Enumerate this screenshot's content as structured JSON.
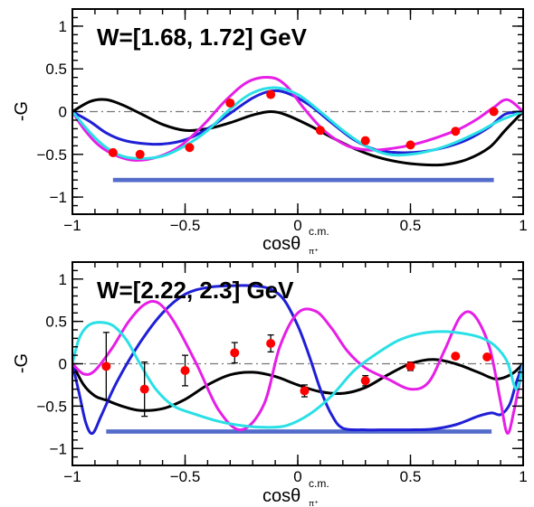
{
  "chart_data": [
    {
      "type": "scatter",
      "title": "W=[1.68, 1.72] GeV",
      "ylabel": "-G",
      "xlabel": "cosθ",
      "xlabel_sup": "c.m.",
      "xlabel_sub": "π⁺",
      "xlim": [
        -1,
        1
      ],
      "ylim": [
        -1.2,
        1.2
      ],
      "xticks": [
        -1,
        -0.5,
        0,
        0.5,
        1
      ],
      "xtick_labels": [
        "−1",
        "−0.5",
        "0",
        "0.5",
        "1"
      ],
      "yticks": [
        -1,
        -0.5,
        0,
        0.5,
        1
      ],
      "ytick_labels": [
        "−1",
        "−0.5",
        "0",
        "0.5",
        "1"
      ],
      "colors": {
        "data": "#ff0000",
        "black": "#000000",
        "blue": "#1f1fd6",
        "magenta": "#e61ee6",
        "cyan": "#29e0e6",
        "systematic": "#1a3bb8"
      },
      "data": {
        "x": [
          -0.82,
          -0.7,
          -0.48,
          -0.3,
          -0.12,
          0.1,
          0.3,
          0.5,
          0.7,
          0.87
        ],
        "y": [
          -0.48,
          -0.5,
          -0.42,
          0.1,
          0.2,
          -0.22,
          -0.34,
          -0.39,
          -0.23,
          0.0
        ],
        "err": [
          0.02,
          0.02,
          0.02,
          0.02,
          0.02,
          0.02,
          0.02,
          0.02,
          0.02,
          0.02
        ]
      },
      "systematic_band": {
        "x": [
          -0.82,
          0.87
        ],
        "y": -0.8,
        "height": 0.05
      },
      "series": [
        {
          "color": "black",
          "x": [
            -1,
            -0.92,
            -0.85,
            -0.78,
            -0.7,
            -0.6,
            -0.5,
            -0.4,
            -0.3,
            -0.2,
            -0.12,
            -0.05,
            0.05,
            0.15,
            0.25,
            0.35,
            0.45,
            0.55,
            0.65,
            0.75,
            0.85,
            0.92,
            1
          ],
          "y": [
            0,
            0.12,
            0.14,
            0.08,
            -0.02,
            -0.15,
            -0.22,
            -0.2,
            -0.13,
            -0.04,
            0.0,
            -0.04,
            -0.16,
            -0.3,
            -0.43,
            -0.53,
            -0.59,
            -0.62,
            -0.62,
            -0.56,
            -0.42,
            -0.22,
            0
          ]
        },
        {
          "color": "blue",
          "x": [
            -1,
            -0.92,
            -0.85,
            -0.78,
            -0.7,
            -0.6,
            -0.5,
            -0.4,
            -0.3,
            -0.2,
            -0.12,
            -0.05,
            0.05,
            0.15,
            0.25,
            0.35,
            0.45,
            0.55,
            0.65,
            0.75,
            0.85,
            0.92,
            1
          ],
          "y": [
            0,
            -0.12,
            -0.25,
            -0.33,
            -0.37,
            -0.38,
            -0.33,
            -0.2,
            -0.02,
            0.16,
            0.24,
            0.22,
            0.08,
            -0.13,
            -0.33,
            -0.45,
            -0.48,
            -0.47,
            -0.42,
            -0.33,
            -0.18,
            -0.03,
            0
          ]
        },
        {
          "color": "magenta",
          "x": [
            -1,
            -0.95,
            -0.88,
            -0.8,
            -0.72,
            -0.62,
            -0.52,
            -0.42,
            -0.32,
            -0.22,
            -0.12,
            -0.05,
            0.03,
            0.12,
            0.22,
            0.32,
            0.42,
            0.52,
            0.62,
            0.72,
            0.8,
            0.87,
            0.93,
            1
          ],
          "y": [
            0,
            -0.2,
            -0.4,
            -0.52,
            -0.57,
            -0.53,
            -0.4,
            -0.16,
            0.13,
            0.35,
            0.4,
            0.3,
            0.03,
            -0.23,
            -0.4,
            -0.45,
            -0.43,
            -0.38,
            -0.3,
            -0.2,
            -0.08,
            0.05,
            0.14,
            0
          ]
        },
        {
          "color": "cyan",
          "x": [
            -1,
            -0.92,
            -0.85,
            -0.78,
            -0.7,
            -0.6,
            -0.5,
            -0.4,
            -0.3,
            -0.2,
            -0.1,
            0.0,
            0.1,
            0.2,
            0.3,
            0.4,
            0.5,
            0.6,
            0.7,
            0.8,
            0.9,
            1
          ],
          "y": [
            0,
            -0.25,
            -0.42,
            -0.52,
            -0.55,
            -0.52,
            -0.4,
            -0.22,
            0.03,
            0.22,
            0.28,
            0.2,
            0.0,
            -0.22,
            -0.4,
            -0.5,
            -0.5,
            -0.45,
            -0.36,
            -0.24,
            -0.1,
            0
          ]
        }
      ]
    },
    {
      "type": "scatter",
      "title": "W=[2.22, 2.3] GeV",
      "ylabel": "-G",
      "xlabel": "cosθ",
      "xlabel_sup": "c.m.",
      "xlabel_sub": "π⁺",
      "xlim": [
        -1,
        1
      ],
      "ylim": [
        -1.2,
        1.2
      ],
      "xticks": [
        -1,
        -0.5,
        0,
        0.5,
        1
      ],
      "xtick_labels": [
        "−1",
        "−0.5",
        "0",
        "0.5",
        "1"
      ],
      "yticks": [
        -1,
        -0.5,
        0,
        0.5,
        1
      ],
      "ytick_labels": [
        "−1",
        "−0.5",
        "0",
        "0.5",
        "1"
      ],
      "colors": {
        "data": "#ff0000",
        "black": "#000000",
        "blue": "#1f1fd6",
        "magenta": "#e61ee6",
        "cyan": "#29e0e6",
        "systematic": "#1a3bb8"
      },
      "data": {
        "x": [
          -0.85,
          -0.68,
          -0.5,
          -0.28,
          -0.12,
          0.03,
          0.3,
          0.5,
          0.7,
          0.84
        ],
        "y": [
          -0.03,
          -0.3,
          -0.08,
          0.13,
          0.24,
          -0.32,
          -0.2,
          -0.03,
          0.09,
          0.08
        ],
        "err": [
          0.4,
          0.32,
          0.18,
          0.12,
          0.1,
          0.07,
          0.06,
          0.05,
          0.03,
          0.03
        ]
      },
      "systematic_band": {
        "x": [
          -0.85,
          0.86
        ],
        "y": -0.8,
        "height": 0.05
      },
      "series": [
        {
          "color": "black",
          "x": [
            -1,
            -0.95,
            -0.9,
            -0.85,
            -0.78,
            -0.7,
            -0.6,
            -0.5,
            -0.4,
            -0.3,
            -0.2,
            -0.1,
            0.0,
            0.1,
            0.2,
            0.3,
            0.4,
            0.5,
            0.6,
            0.7,
            0.8,
            0.88,
            0.95,
            1
          ],
          "y": [
            0,
            -0.25,
            -0.38,
            -0.43,
            -0.5,
            -0.55,
            -0.53,
            -0.42,
            -0.25,
            -0.13,
            -0.1,
            -0.15,
            -0.25,
            -0.33,
            -0.35,
            -0.28,
            -0.13,
            0.0,
            0.05,
            0.0,
            -0.1,
            -0.18,
            -0.12,
            0
          ]
        },
        {
          "color": "blue",
          "x": [
            -1,
            -0.97,
            -0.94,
            -0.91,
            -0.87,
            -0.8,
            -0.7,
            -0.6,
            -0.5,
            -0.4,
            -0.3,
            -0.2,
            -0.12,
            -0.06,
            0.0,
            0.05,
            0.1,
            0.15,
            0.2,
            0.3,
            0.4,
            0.5,
            0.6,
            0.7,
            0.8,
            0.86,
            0.9,
            0.94,
            0.97,
            1
          ],
          "y": [
            0,
            -0.35,
            -0.7,
            -0.82,
            -0.6,
            -0.2,
            0.25,
            0.6,
            0.82,
            0.9,
            0.92,
            0.92,
            0.88,
            0.75,
            0.45,
            0.1,
            -0.3,
            -0.6,
            -0.76,
            -0.78,
            -0.78,
            -0.78,
            -0.77,
            -0.72,
            -0.62,
            -0.58,
            -0.6,
            -0.48,
            -0.22,
            0
          ]
        },
        {
          "color": "magenta",
          "x": [
            -1,
            -0.95,
            -0.9,
            -0.82,
            -0.75,
            -0.68,
            -0.62,
            -0.55,
            -0.45,
            -0.35,
            -0.25,
            -0.15,
            -0.08,
            0.0,
            0.08,
            0.15,
            0.22,
            0.3,
            0.4,
            0.5,
            0.58,
            0.65,
            0.72,
            0.78,
            0.85,
            0.9,
            0.93,
            0.96,
            1
          ],
          "y": [
            0,
            -0.12,
            -0.08,
            0.2,
            0.5,
            0.7,
            0.72,
            0.5,
            0.0,
            -0.55,
            -0.78,
            -0.48,
            0.2,
            0.6,
            0.62,
            0.42,
            0.15,
            -0.05,
            -0.18,
            -0.3,
            -0.22,
            0.15,
            0.55,
            0.58,
            0.2,
            -0.45,
            -0.82,
            -0.55,
            0
          ]
        },
        {
          "color": "cyan",
          "x": [
            -1,
            -0.97,
            -0.93,
            -0.88,
            -0.82,
            -0.76,
            -0.7,
            -0.63,
            -0.55,
            -0.45,
            -0.35,
            -0.25,
            -0.15,
            -0.05,
            0.05,
            0.15,
            0.25,
            0.35,
            0.45,
            0.55,
            0.65,
            0.75,
            0.82,
            0.88,
            0.93,
            0.97,
            1
          ],
          "y": [
            0,
            0.3,
            0.45,
            0.49,
            0.45,
            0.28,
            0.0,
            -0.3,
            -0.5,
            -0.6,
            -0.68,
            -0.73,
            -0.75,
            -0.73,
            -0.6,
            -0.38,
            -0.08,
            0.12,
            0.28,
            0.36,
            0.38,
            0.35,
            0.3,
            0.2,
            0.02,
            -0.3,
            0
          ]
        }
      ]
    }
  ]
}
